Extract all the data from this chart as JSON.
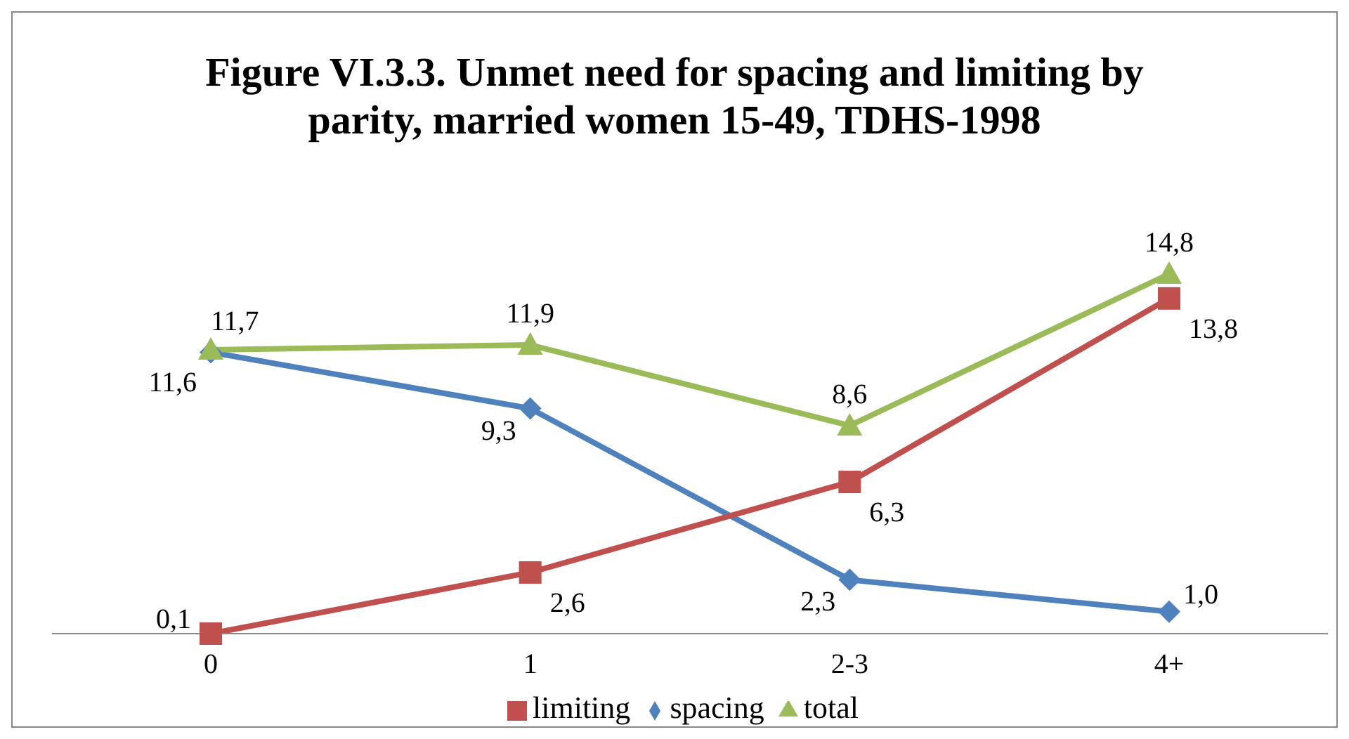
{
  "chart_data": {
    "type": "line",
    "title": "Figure VI.3.3. Unmet need for spacing and limiting  by parity, married women 15-49, TDHS-1998",
    "categories": [
      "0",
      "1",
      "2-3",
      "4+"
    ],
    "series": [
      {
        "name": "spacing",
        "color": "#4f81bd",
        "marker": "diamond",
        "values": [
          11.6,
          9.3,
          2.3,
          1.0
        ],
        "value_labels": [
          "11,6",
          "9,3",
          "2,3",
          "1,0"
        ]
      },
      {
        "name": "limiting",
        "color": "#c0504d",
        "marker": "square",
        "values": [
          0.1,
          2.6,
          6.3,
          13.8
        ],
        "value_labels": [
          "0,1",
          "2,6",
          "6,3",
          "13,8"
        ]
      },
      {
        "name": "total",
        "color": "#9bbb59",
        "marker": "triangle",
        "values": [
          11.7,
          11.9,
          8.6,
          14.8
        ],
        "value_labels": [
          "11,7",
          "11,9",
          "8,6",
          "14,8"
        ]
      }
    ],
    "legend": "bottom",
    "grid": false
  }
}
